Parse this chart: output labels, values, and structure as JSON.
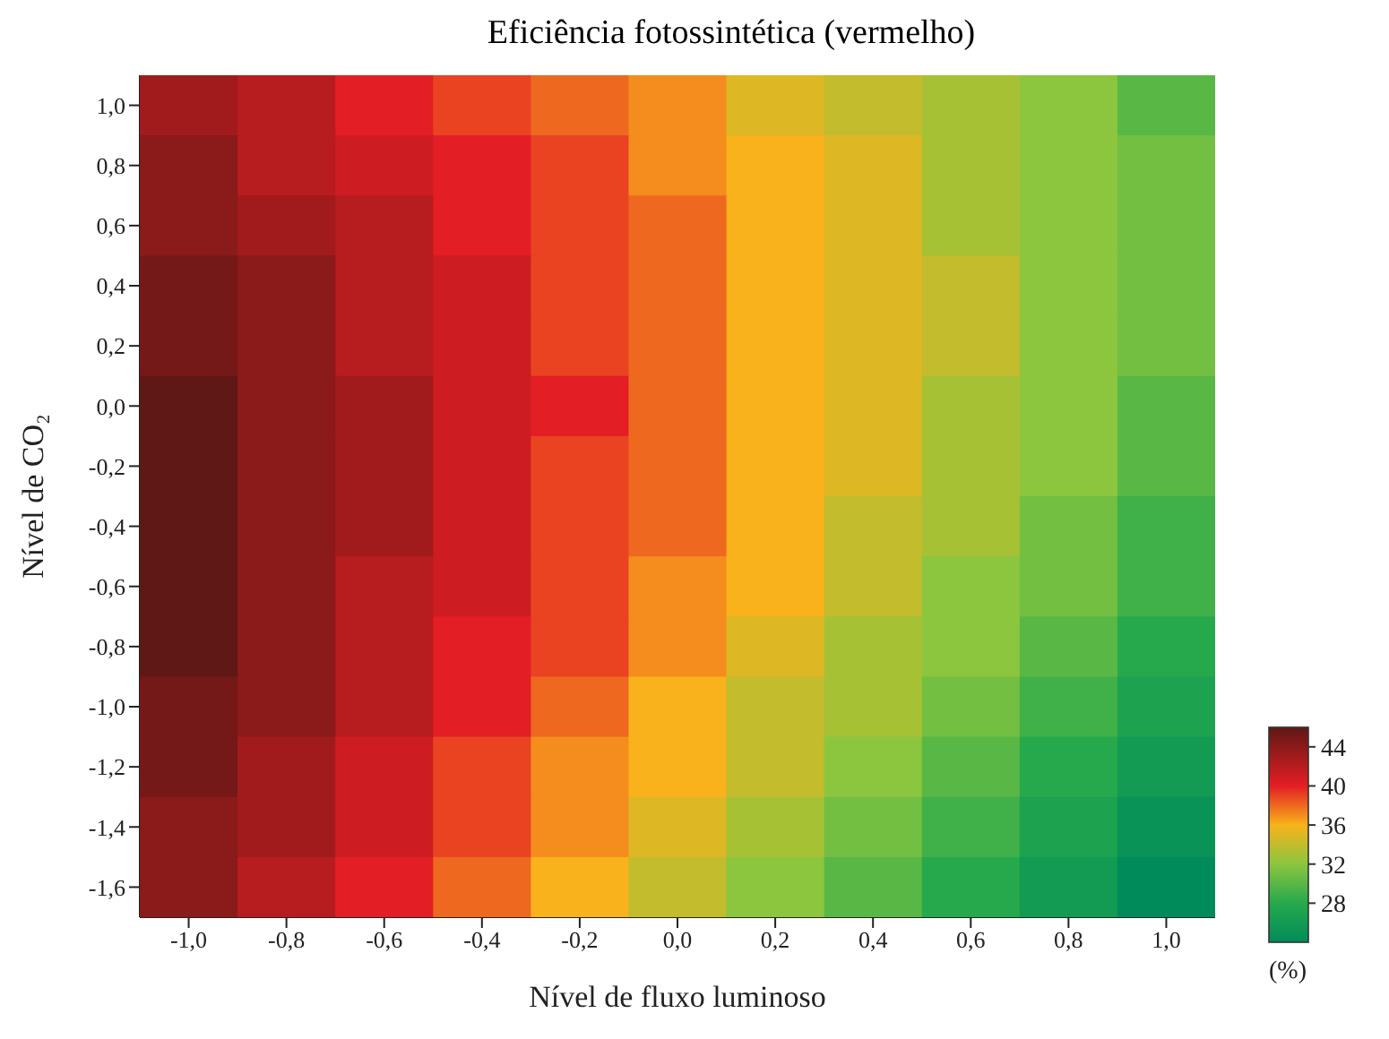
{
  "chart_data": {
    "type": "heatmap",
    "title": "Eficiência fotossintética (vermelho)",
    "xlabel": "Nível de fluxo luminoso",
    "ylabel": "Nível de CO₂",
    "clabel": "(%)",
    "categories": [
      "-1,0",
      "-0,8",
      "-0,6",
      "-0,4",
      "-0,2",
      "0,0",
      "0,2",
      "0,4",
      "0,6",
      "0,8",
      "1,0"
    ],
    "y_categories": [
      "1,0",
      "0,8",
      "0,6",
      "0,4",
      "0,2",
      "0,0",
      "-0,2",
      "-0,4",
      "-0,6",
      "-0,8",
      "-1,0",
      "-1,2",
      "-1,4",
      "-1,6"
    ],
    "cells": [
      [
        43,
        42,
        40,
        39,
        38,
        37,
        35,
        34,
        33,
        32,
        30
      ],
      [
        44,
        42,
        41,
        40,
        39,
        37,
        36,
        35,
        33,
        32,
        31
      ],
      [
        44,
        43,
        42,
        40,
        39,
        38,
        36,
        35,
        33,
        32,
        31
      ],
      [
        45,
        44,
        42,
        41,
        39,
        38,
        36,
        35,
        34,
        32,
        31
      ],
      [
        45,
        44,
        42,
        41,
        39,
        38,
        36,
        35,
        34,
        32,
        31
      ],
      [
        46,
        44,
        43,
        41,
        40,
        38,
        36,
        35,
        33,
        32,
        30
      ],
      [
        46,
        44,
        43,
        41,
        39,
        38,
        36,
        35,
        33,
        32,
        30
      ],
      [
        46,
        44,
        43,
        41,
        39,
        38,
        36,
        34,
        33,
        31,
        29
      ],
      [
        46,
        44,
        42,
        41,
        39,
        37,
        36,
        34,
        32,
        31,
        29
      ],
      [
        46,
        44,
        42,
        40,
        39,
        37,
        35,
        33,
        32,
        30,
        28
      ],
      [
        45,
        44,
        42,
        40,
        38,
        36,
        34,
        33,
        31,
        29,
        27
      ],
      [
        45,
        43,
        41,
        39,
        37,
        36,
        34,
        32,
        30,
        28,
        26
      ],
      [
        44,
        43,
        41,
        39,
        37,
        35,
        33,
        31,
        29,
        27,
        25
      ],
      [
        44,
        42,
        40,
        38,
        36,
        34,
        32,
        30,
        28,
        26,
        24
      ]
    ],
    "clim": [
      24,
      46
    ],
    "cticks": [
      44,
      40,
      36,
      32,
      28
    ],
    "colors": [
      "#8b1a1a",
      "#e31e24",
      "#f9b21b",
      "#8cc63e",
      "#26a94c"
    ]
  }
}
